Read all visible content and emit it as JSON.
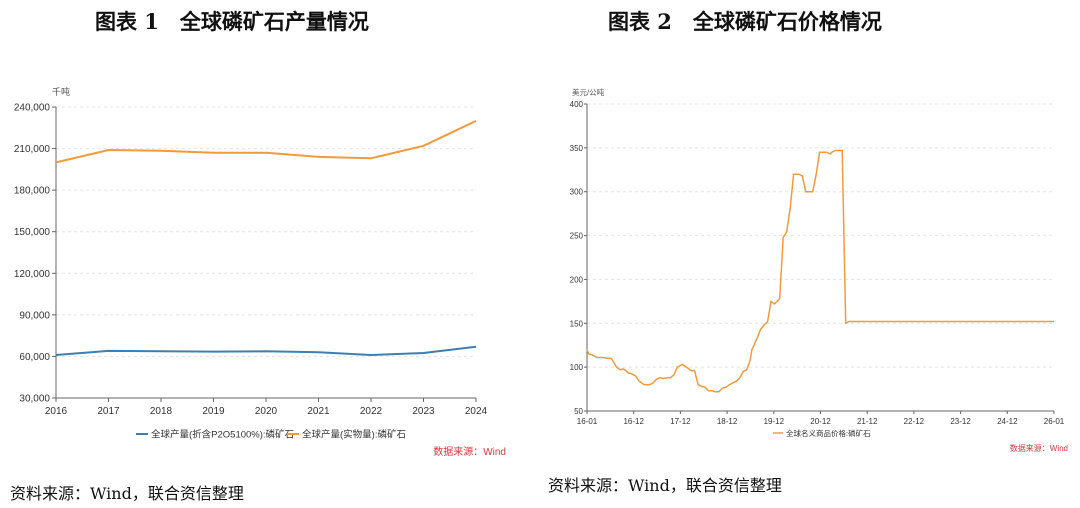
{
  "chart_data": [
    {
      "type": "line",
      "title": "图表 1　全球磷矿石产量情况",
      "unit": "千吨",
      "categories": [
        "2016",
        "2017",
        "2018",
        "2019",
        "2020",
        "2021",
        "2022",
        "2023",
        "2024"
      ],
      "ylim": [
        30000,
        240000
      ],
      "yticks": [
        30000,
        60000,
        90000,
        120000,
        150000,
        180000,
        210000,
        240000
      ],
      "ytick_labels": [
        "30,000",
        "60,000",
        "90,000",
        "120,000",
        "150,000",
        "180,000",
        "210,000",
        "240,000"
      ],
      "grid": true,
      "series": [
        {
          "name": "全球产量(折含P2O5100%):磷矿石",
          "color": "#3d7fb0",
          "values": [
            61000,
            64000,
            63800,
            63500,
            63700,
            63000,
            61000,
            62500,
            67000
          ]
        },
        {
          "name": "全球产量(实物量):磷矿石",
          "color": "#f39a3a",
          "values": [
            200000,
            209000,
            208500,
            207000,
            207000,
            204000,
            203000,
            212000,
            230000
          ]
        }
      ],
      "watermark": "数据来源：Wind",
      "source": "资料来源：Wind，联合资信整理"
    },
    {
      "type": "line",
      "title": "图表 2　全球磷矿石价格情况",
      "unit": "美元/公吨",
      "x_tick_labels": [
        "16-01",
        "16-12",
        "17-12",
        "18-12",
        "19-12",
        "20-12",
        "21-12",
        "22-12",
        "23-12",
        "24-12",
        "26-01"
      ],
      "ylim": [
        50,
        400
      ],
      "yticks": [
        50,
        100,
        150,
        200,
        250,
        300,
        350,
        400
      ],
      "ytick_labels": [
        "50",
        "100",
        "150",
        "200",
        "250",
        "300",
        "350",
        "400"
      ],
      "grid": true,
      "series": [
        {
          "name": "全球名义商品价格:磷矿石",
          "color": "#f39a3a",
          "x": [
            0,
            1,
            3,
            6,
            9,
            12,
            14,
            17,
            19,
            21,
            23,
            24,
            25,
            28,
            30,
            33,
            36,
            38,
            40,
            42,
            44,
            46,
            48,
            50,
            52,
            55,
            58,
            60,
            62,
            64,
            66,
            68,
            70,
            72,
            74,
            76,
            78,
            80,
            82,
            84,
            86,
            88,
            90,
            92,
            94,
            95,
            96,
            97,
            98,
            100,
            102,
            104,
            106,
            108,
            109,
            111,
            113,
            115,
            117,
            119,
            121,
            122,
            124,
            126,
            128,
            130,
            132,
            134,
            136,
            138,
            140,
            141,
            143,
            145,
            147,
            149,
            151,
            153,
            155,
            157,
            158,
            159,
            160,
            162,
            164,
            166,
            168,
            170,
            172,
            174,
            176,
            178,
            179,
            181,
            183,
            184,
            186,
            188,
            190,
            192,
            194,
            196,
            198,
            200,
            210,
            220,
            230,
            240,
            250,
            260,
            269
          ],
          "values": [
            120,
            115,
            114,
            111,
            111,
            110,
            110,
            100,
            97,
            98,
            95,
            93,
            93,
            90,
            84,
            80,
            80,
            82,
            86,
            88,
            87,
            88,
            88,
            91,
            100,
            103,
            99,
            96,
            96,
            80,
            78,
            77,
            73,
            73,
            72,
            72,
            76,
            77,
            80,
            82,
            84,
            88,
            95,
            97,
            108,
            120,
            124,
            129,
            133,
            143,
            148,
            152,
            175,
            172,
            174,
            178,
            248,
            254,
            280,
            320,
            320,
            320,
            318,
            300,
            300,
            300,
            320,
            345,
            345,
            345,
            343,
            345,
            347,
            347,
            347,
            150,
            152,
            152,
            152,
            152,
            152,
            152,
            152,
            152,
            152,
            152,
            152,
            152,
            152,
            152,
            152,
            152,
            152,
            152,
            152,
            152,
            152,
            152,
            152,
            152,
            152,
            152,
            152,
            152,
            152,
            152,
            152,
            152,
            152,
            152,
            152
          ]
        }
      ],
      "watermark": "数据来源：Wind",
      "source": "资料来源：Wind，联合资信整理"
    }
  ]
}
